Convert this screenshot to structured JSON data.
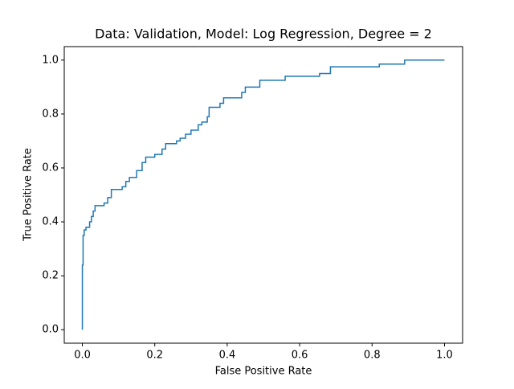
{
  "chart_data": {
    "type": "line",
    "title": "Data: Validation, Model: Log Regression, Degree = 2",
    "xlabel": "False Positive Rate",
    "ylabel": "True Positive Rate",
    "color": "#1f77b4",
    "x": [
      0,
      0,
      0.002,
      0.002,
      0.005,
      0.005,
      0.01,
      0.01,
      0.02,
      0.02,
      0.025,
      0.025,
      0.03,
      0.03,
      0.035,
      0.035,
      0.06,
      0.06,
      0.07,
      0.07,
      0.08,
      0.08,
      0.11,
      0.11,
      0.12,
      0.12,
      0.13,
      0.13,
      0.15,
      0.15,
      0.165,
      0.165,
      0.175,
      0.175,
      0.2,
      0.2,
      0.22,
      0.22,
      0.23,
      0.23,
      0.26,
      0.26,
      0.27,
      0.27,
      0.285,
      0.285,
      0.3,
      0.3,
      0.32,
      0.32,
      0.33,
      0.33,
      0.345,
      0.345,
      0.35,
      0.35,
      0.38,
      0.38,
      0.39,
      0.39,
      0.44,
      0.44,
      0.45,
      0.45,
      0.49,
      0.49,
      0.56,
      0.56,
      0.655,
      0.655,
      0.685,
      0.685,
      0.82,
      0.82,
      0.89,
      0.89,
      1.0
    ],
    "values": [
      0,
      0.24,
      0.24,
      0.35,
      0.35,
      0.37,
      0.37,
      0.38,
      0.38,
      0.4,
      0.4,
      0.42,
      0.42,
      0.44,
      0.44,
      0.46,
      0.46,
      0.47,
      0.47,
      0.49,
      0.49,
      0.52,
      0.52,
      0.53,
      0.53,
      0.55,
      0.55,
      0.565,
      0.565,
      0.59,
      0.59,
      0.62,
      0.62,
      0.64,
      0.64,
      0.65,
      0.65,
      0.67,
      0.67,
      0.69,
      0.69,
      0.7,
      0.7,
      0.71,
      0.71,
      0.725,
      0.725,
      0.74,
      0.74,
      0.76,
      0.76,
      0.77,
      0.77,
      0.79,
      0.79,
      0.825,
      0.825,
      0.84,
      0.84,
      0.86,
      0.86,
      0.88,
      0.88,
      0.9,
      0.9,
      0.925,
      0.925,
      0.94,
      0.94,
      0.95,
      0.95,
      0.975,
      0.975,
      0.985,
      0.985,
      1.0,
      1.0
    ],
    "xlim": [
      -0.05,
      1.05
    ],
    "ylim": [
      -0.05,
      1.05
    ],
    "xticks": [
      {
        "value": 0,
        "label": "0.0"
      },
      {
        "value": 0.2,
        "label": "0.2"
      },
      {
        "value": 0.4,
        "label": "0.4"
      },
      {
        "value": 0.6,
        "label": "0.6"
      },
      {
        "value": 0.8,
        "label": "0.8"
      },
      {
        "value": 1,
        "label": "1.0"
      }
    ],
    "yticks": [
      {
        "value": 0,
        "label": "0.0"
      },
      {
        "value": 0.2,
        "label": "0.2"
      },
      {
        "value": 0.4,
        "label": "0.4"
      },
      {
        "value": 0.6,
        "label": "0.6"
      },
      {
        "value": 0.8,
        "label": "0.8"
      },
      {
        "value": 1,
        "label": "1.0"
      }
    ],
    "grid": false
  }
}
